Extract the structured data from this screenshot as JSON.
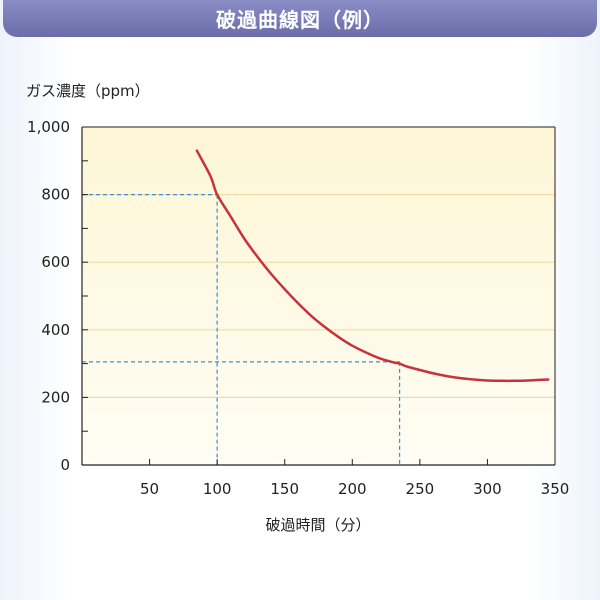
{
  "chart_data": {
    "type": "line",
    "title": "破過曲線図（例）",
    "ylabel": "ガス濃度（ppm）",
    "xlabel": "破過時間（分）",
    "xlim": [
      0,
      350
    ],
    "ylim": [
      0,
      1000
    ],
    "x_ticks": [
      "50",
      "100",
      "150",
      "200",
      "250",
      "300",
      "350"
    ],
    "y_ticks": [
      "0",
      "200",
      "400",
      "600",
      "800",
      "1,000"
    ],
    "grid": "horizontal",
    "colors": {
      "curve": "#c8323c",
      "guide": "#3a8fd6",
      "title_bar": "#7a7cb8"
    },
    "series": [
      {
        "x": [
          85,
          95,
          100,
          110,
          120,
          130,
          140,
          150,
          160,
          170,
          180,
          190,
          200,
          210,
          220,
          230,
          235,
          240,
          250,
          260,
          270,
          280,
          290,
          300,
          310,
          320,
          330,
          340,
          345
        ],
        "y": [
          930,
          855,
          800,
          735,
          670,
          615,
          565,
          520,
          478,
          440,
          407,
          378,
          353,
          333,
          316,
          304,
          300,
          292,
          281,
          271,
          263,
          257,
          253,
          250,
          249,
          249,
          250,
          252,
          253
        ]
      }
    ],
    "guides": [
      {
        "x": 100,
        "y": 800
      },
      {
        "x": 235,
        "y": 305
      }
    ]
  }
}
